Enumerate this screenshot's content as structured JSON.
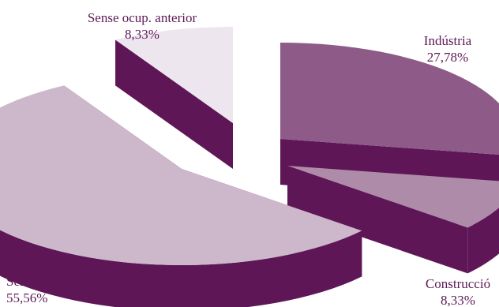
{
  "chart_data": {
    "type": "pie",
    "style": "3d-exploded",
    "slices": [
      {
        "name": "Indústria",
        "label": "27,78%",
        "value": 27.78,
        "color": "#8e5a88",
        "side_color": "#5e1656"
      },
      {
        "name": "Construcció",
        "label": "8,33%",
        "value": 8.33,
        "color": "#ae8ca9",
        "side_color": "#5e1656"
      },
      {
        "name": "Serveis",
        "label": "55,56%",
        "value": 55.56,
        "color": "#cdb7cb",
        "side_color": "#5e1656"
      },
      {
        "name": "Sense ocup. anterior",
        "label": "8,33%",
        "value": 8.33,
        "color": "#eee6ef",
        "side_color": "#5e1656"
      }
    ]
  }
}
